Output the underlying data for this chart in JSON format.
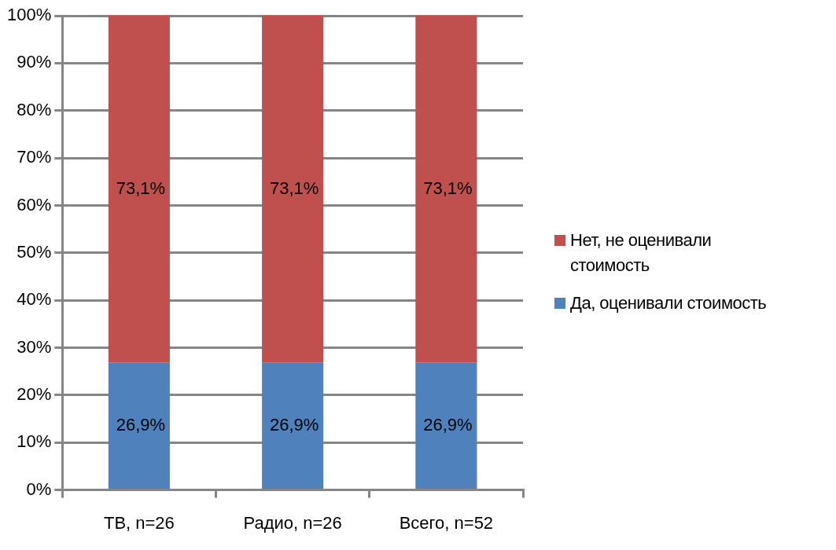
{
  "chart_data": {
    "type": "bar",
    "stacked": true,
    "categories": [
      "ТВ, n=26",
      "Радио, n=26",
      "Всего, n=52"
    ],
    "series": [
      {
        "name": "Да, оценивали стоимость",
        "color": "#4f81bd",
        "values": [
          26.9,
          26.9,
          26.9
        ],
        "value_labels": [
          "26,9%",
          "26,9%",
          "26,9%"
        ]
      },
      {
        "name": "Нет, не оценивали стоимость",
        "color": "#c0504d",
        "values": [
          73.1,
          73.1,
          73.1
        ],
        "value_labels": [
          "73,1%",
          "73,1%",
          "73,1%"
        ]
      }
    ],
    "ylim": [
      0,
      100
    ],
    "yticks": [
      {
        "value": 0,
        "label": "0%"
      },
      {
        "value": 10,
        "label": "10%"
      },
      {
        "value": 20,
        "label": "20%"
      },
      {
        "value": 30,
        "label": "30%"
      },
      {
        "value": 40,
        "label": "40%"
      },
      {
        "value": 50,
        "label": "50%"
      },
      {
        "value": 60,
        "label": "60%"
      },
      {
        "value": 70,
        "label": "70%"
      },
      {
        "value": 80,
        "label": "80%"
      },
      {
        "value": 90,
        "label": "90%"
      },
      {
        "value": 100,
        "label": "100%"
      }
    ],
    "grid": "y",
    "legend": "right"
  }
}
